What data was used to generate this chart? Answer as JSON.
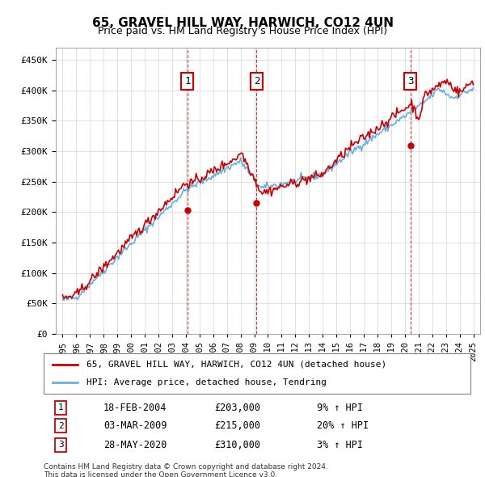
{
  "title": "65, GRAVEL HILL WAY, HARWICH, CO12 4UN",
  "subtitle": "Price paid vs. HM Land Registry's House Price Index (HPI)",
  "legend_line1": "65, GRAVEL HILL WAY, HARWICH, CO12 4UN (detached house)",
  "legend_line2": "HPI: Average price, detached house, Tendring",
  "footnote1": "Contains HM Land Registry data © Crown copyright and database right 2024.",
  "footnote2": "This data is licensed under the Open Government Licence v3.0.",
  "transactions": [
    {
      "num": 1,
      "date": "18-FEB-2004",
      "price": "£203,000",
      "hpi": "9% ↑ HPI",
      "year": 2004.12
    },
    {
      "num": 2,
      "date": "03-MAR-2009",
      "price": "£215,000",
      "hpi": "20% ↑ HPI",
      "year": 2009.17
    },
    {
      "num": 3,
      "date": "28-MAY-2020",
      "price": "£310,000",
      "hpi": "3% ↑ HPI",
      "year": 2020.41
    }
  ],
  "hpi_color": "#6ab0de",
  "price_color": "#cc0000",
  "shade_color": "#ddeeff",
  "marker_color": "#cc0000",
  "ylim": [
    0,
    470000
  ],
  "yticks": [
    0,
    50000,
    100000,
    150000,
    200000,
    250000,
    300000,
    350000,
    400000,
    450000
  ],
  "xlim": [
    1994.5,
    2025.5
  ]
}
